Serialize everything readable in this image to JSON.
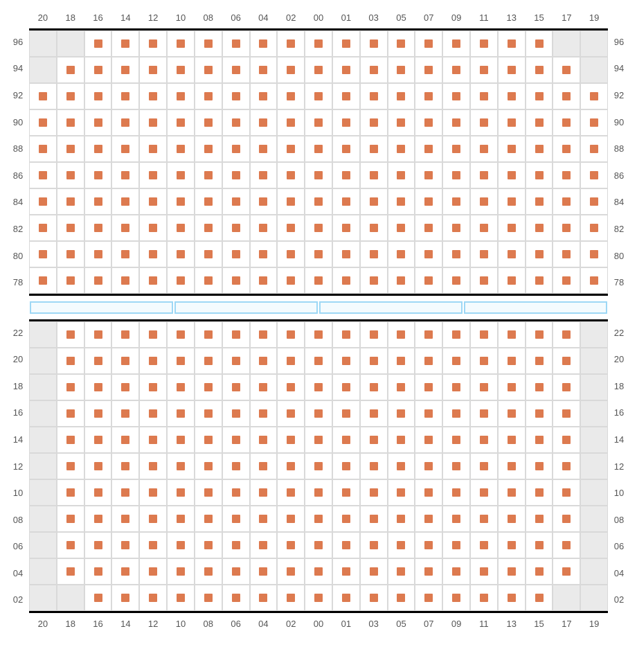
{
  "colors": {
    "seat": "#dd7a4f",
    "blocked": "#eaeaea",
    "cell_bg": "#ffffff",
    "cell_border": "#d9d9d9",
    "section_border": "#000000",
    "divider_border": "#9ed8f5",
    "divider_fill": "#f4fbfe",
    "label": "#555555"
  },
  "columns": [
    "20",
    "18",
    "16",
    "14",
    "12",
    "10",
    "08",
    "06",
    "04",
    "02",
    "00",
    "01",
    "03",
    "05",
    "07",
    "09",
    "11",
    "13",
    "15",
    "17",
    "19"
  ],
  "top_section": {
    "rows": [
      "96",
      "94",
      "92",
      "90",
      "88",
      "86",
      "84",
      "82",
      "80",
      "78"
    ],
    "cells": [
      [
        "b",
        "b",
        "s",
        "s",
        "s",
        "s",
        "s",
        "s",
        "s",
        "s",
        "s",
        "s",
        "s",
        "s",
        "s",
        "s",
        "s",
        "s",
        "s",
        "b",
        "b"
      ],
      [
        "b",
        "s",
        "s",
        "s",
        "s",
        "s",
        "s",
        "s",
        "s",
        "s",
        "s",
        "s",
        "s",
        "s",
        "s",
        "s",
        "s",
        "s",
        "s",
        "s",
        "b"
      ],
      [
        "s",
        "s",
        "s",
        "s",
        "s",
        "s",
        "s",
        "s",
        "s",
        "s",
        "s",
        "s",
        "s",
        "s",
        "s",
        "s",
        "s",
        "s",
        "s",
        "s",
        "s"
      ],
      [
        "s",
        "s",
        "s",
        "s",
        "s",
        "s",
        "s",
        "s",
        "s",
        "s",
        "s",
        "s",
        "s",
        "s",
        "s",
        "s",
        "s",
        "s",
        "s",
        "s",
        "s"
      ],
      [
        "s",
        "s",
        "s",
        "s",
        "s",
        "s",
        "s",
        "s",
        "s",
        "s",
        "s",
        "s",
        "s",
        "s",
        "s",
        "s",
        "s",
        "s",
        "s",
        "s",
        "s"
      ],
      [
        "s",
        "s",
        "s",
        "s",
        "s",
        "s",
        "s",
        "s",
        "s",
        "s",
        "s",
        "s",
        "s",
        "s",
        "s",
        "s",
        "s",
        "s",
        "s",
        "s",
        "s"
      ],
      [
        "s",
        "s",
        "s",
        "s",
        "s",
        "s",
        "s",
        "s",
        "s",
        "s",
        "s",
        "s",
        "s",
        "s",
        "s",
        "s",
        "s",
        "s",
        "s",
        "s",
        "s"
      ],
      [
        "s",
        "s",
        "s",
        "s",
        "s",
        "s",
        "s",
        "s",
        "s",
        "s",
        "s",
        "s",
        "s",
        "s",
        "s",
        "s",
        "s",
        "s",
        "s",
        "s",
        "s"
      ],
      [
        "s",
        "s",
        "s",
        "s",
        "s",
        "s",
        "s",
        "s",
        "s",
        "s",
        "s",
        "s",
        "s",
        "s",
        "s",
        "s",
        "s",
        "s",
        "s",
        "s",
        "s"
      ],
      [
        "s",
        "s",
        "s",
        "s",
        "s",
        "s",
        "s",
        "s",
        "s",
        "s",
        "s",
        "s",
        "s",
        "s",
        "s",
        "s",
        "s",
        "s",
        "s",
        "s",
        "s"
      ]
    ]
  },
  "bottom_section": {
    "rows": [
      "22",
      "20",
      "18",
      "16",
      "14",
      "12",
      "10",
      "08",
      "06",
      "04",
      "02"
    ],
    "cells": [
      [
        "b",
        "s",
        "s",
        "s",
        "s",
        "s",
        "s",
        "s",
        "s",
        "s",
        "s",
        "s",
        "s",
        "s",
        "s",
        "s",
        "s",
        "s",
        "s",
        "s",
        "b"
      ],
      [
        "b",
        "s",
        "s",
        "s",
        "s",
        "s",
        "s",
        "s",
        "s",
        "s",
        "s",
        "s",
        "s",
        "s",
        "s",
        "s",
        "s",
        "s",
        "s",
        "s",
        "b"
      ],
      [
        "b",
        "s",
        "s",
        "s",
        "s",
        "s",
        "s",
        "s",
        "s",
        "s",
        "s",
        "s",
        "s",
        "s",
        "s",
        "s",
        "s",
        "s",
        "s",
        "s",
        "b"
      ],
      [
        "b",
        "s",
        "s",
        "s",
        "s",
        "s",
        "s",
        "s",
        "s",
        "s",
        "s",
        "s",
        "s",
        "s",
        "s",
        "s",
        "s",
        "s",
        "s",
        "s",
        "b"
      ],
      [
        "b",
        "s",
        "s",
        "s",
        "s",
        "s",
        "s",
        "s",
        "s",
        "s",
        "s",
        "s",
        "s",
        "s",
        "s",
        "s",
        "s",
        "s",
        "s",
        "s",
        "b"
      ],
      [
        "b",
        "s",
        "s",
        "s",
        "s",
        "s",
        "s",
        "s",
        "s",
        "s",
        "s",
        "s",
        "s",
        "s",
        "s",
        "s",
        "s",
        "s",
        "s",
        "s",
        "b"
      ],
      [
        "b",
        "s",
        "s",
        "s",
        "s",
        "s",
        "s",
        "s",
        "s",
        "s",
        "s",
        "s",
        "s",
        "s",
        "s",
        "s",
        "s",
        "s",
        "s",
        "s",
        "b"
      ],
      [
        "b",
        "s",
        "s",
        "s",
        "s",
        "s",
        "s",
        "s",
        "s",
        "s",
        "s",
        "s",
        "s",
        "s",
        "s",
        "s",
        "s",
        "s",
        "s",
        "s",
        "b"
      ],
      [
        "b",
        "s",
        "s",
        "s",
        "s",
        "s",
        "s",
        "s",
        "s",
        "s",
        "s",
        "s",
        "s",
        "s",
        "s",
        "s",
        "s",
        "s",
        "s",
        "s",
        "b"
      ],
      [
        "b",
        "s",
        "s",
        "s",
        "s",
        "s",
        "s",
        "s",
        "s",
        "s",
        "s",
        "s",
        "s",
        "s",
        "s",
        "s",
        "s",
        "s",
        "s",
        "s",
        "b"
      ],
      [
        "b",
        "b",
        "s",
        "s",
        "s",
        "s",
        "s",
        "s",
        "s",
        "s",
        "s",
        "s",
        "s",
        "s",
        "s",
        "s",
        "s",
        "s",
        "s",
        "b",
        "b"
      ]
    ]
  },
  "divider_segments": 4
}
